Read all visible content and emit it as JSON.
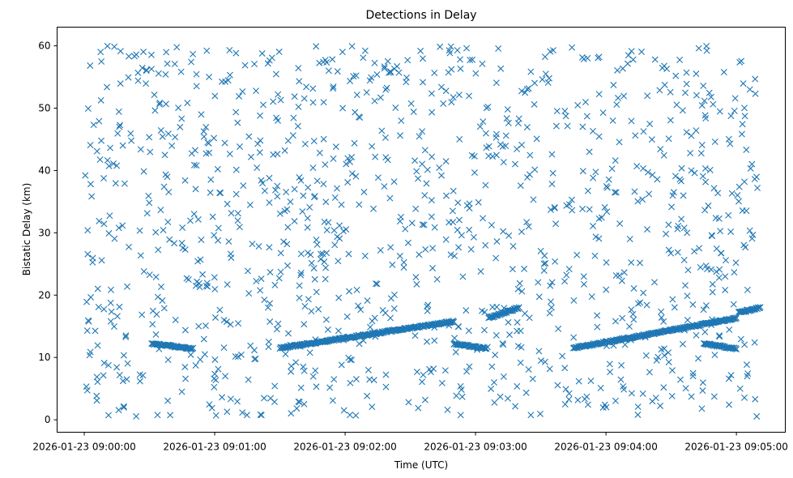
{
  "chart_data": {
    "type": "scatter",
    "title": "Detections in Delay",
    "xlabel": "Time (UTC)",
    "ylabel": "Bistatic Delay (km)",
    "marker": "x",
    "color": "#1f77b4",
    "grid": false,
    "x_range_seconds": [
      -12.5,
      322.5
    ],
    "ylim": [
      -2,
      63
    ],
    "x_ticks": [
      {
        "t": 0,
        "label": "2026-01-23 09:00:00"
      },
      {
        "t": 60,
        "label": "2026-01-23 09:01:00"
      },
      {
        "t": 120,
        "label": "2026-01-23 09:02:00"
      },
      {
        "t": 180,
        "label": "2026-01-23 09:03:00"
      },
      {
        "t": 240,
        "label": "2026-01-23 09:04:00"
      },
      {
        "t": 300,
        "label": "2026-01-23 09:05:00"
      }
    ],
    "y_ticks": [
      0,
      10,
      20,
      30,
      40,
      50,
      60
    ],
    "tracks": [
      {
        "t_start": 31,
        "t_end": 50,
        "delay_start": 12.2,
        "delay_end": 11.4
      },
      {
        "t_start": 90,
        "t_end": 170,
        "delay_start": 11.5,
        "delay_end": 15.8
      },
      {
        "t_start": 170,
        "t_end": 185,
        "delay_start": 12.2,
        "delay_end": 11.4
      },
      {
        "t_start": 186,
        "t_end": 200,
        "delay_start": 16.3,
        "delay_end": 18.0
      },
      {
        "t_start": 225,
        "t_end": 300,
        "delay_start": 11.5,
        "delay_end": 16.3
      },
      {
        "t_start": 285,
        "t_end": 300,
        "delay_start": 12.2,
        "delay_end": 11.4
      },
      {
        "t_start": 301,
        "t_end": 311,
        "delay_start": 17.2,
        "delay_end": 18.0
      }
    ],
    "clutter": {
      "t_range": [
        0,
        310
      ],
      "delay_range": [
        0.5,
        60
      ],
      "approx_count": 1150
    }
  }
}
